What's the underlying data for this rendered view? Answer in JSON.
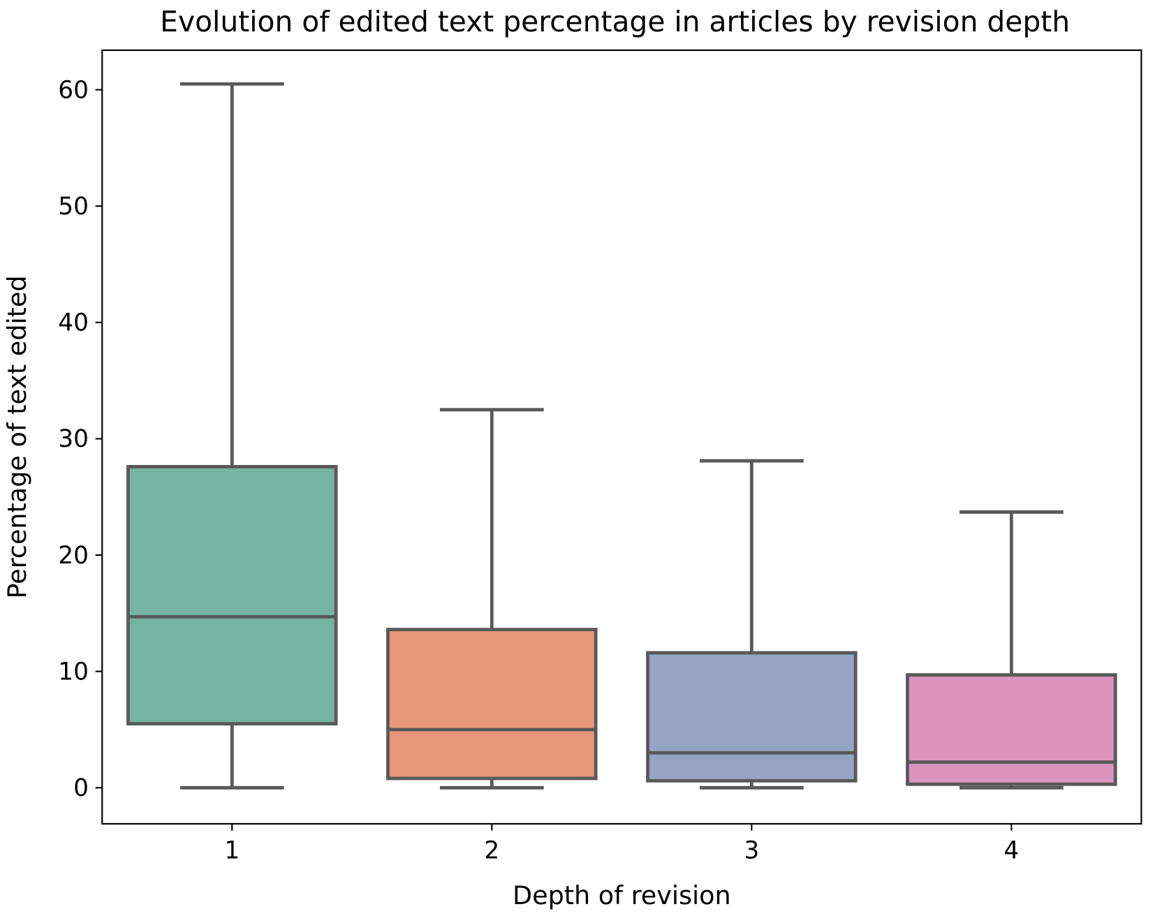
{
  "chart_data": {
    "type": "box",
    "title": "Evolution of edited text percentage in articles by revision depth",
    "xlabel": "Depth of revision",
    "ylabel": "Percentage of text edited",
    "categories": [
      "1",
      "2",
      "3",
      "4"
    ],
    "ylim": [
      -3.1,
      63.4
    ],
    "yticks": [
      0,
      10,
      20,
      30,
      40,
      50,
      60
    ],
    "grid": false,
    "boxes": [
      {
        "category": "1",
        "whisker_low": 0,
        "q1": 5.5,
        "median": 14.7,
        "q3": 27.6,
        "whisker_high": 60.5,
        "color": "#74b4a0"
      },
      {
        "category": "2",
        "whisker_low": 0,
        "q1": 0.8,
        "median": 5.0,
        "q3": 13.6,
        "whisker_high": 32.5,
        "color": "#e8977a"
      },
      {
        "category": "3",
        "whisker_low": 0,
        "q1": 0.6,
        "median": 3.0,
        "q3": 11.6,
        "whisker_high": 28.1,
        "color": "#95a4c3"
      },
      {
        "category": "4",
        "whisker_low": 0,
        "q1": 0.3,
        "median": 2.2,
        "q3": 9.7,
        "whisker_high": 23.7,
        "color": "#dc94bf"
      }
    ],
    "line_color": "#595959"
  }
}
